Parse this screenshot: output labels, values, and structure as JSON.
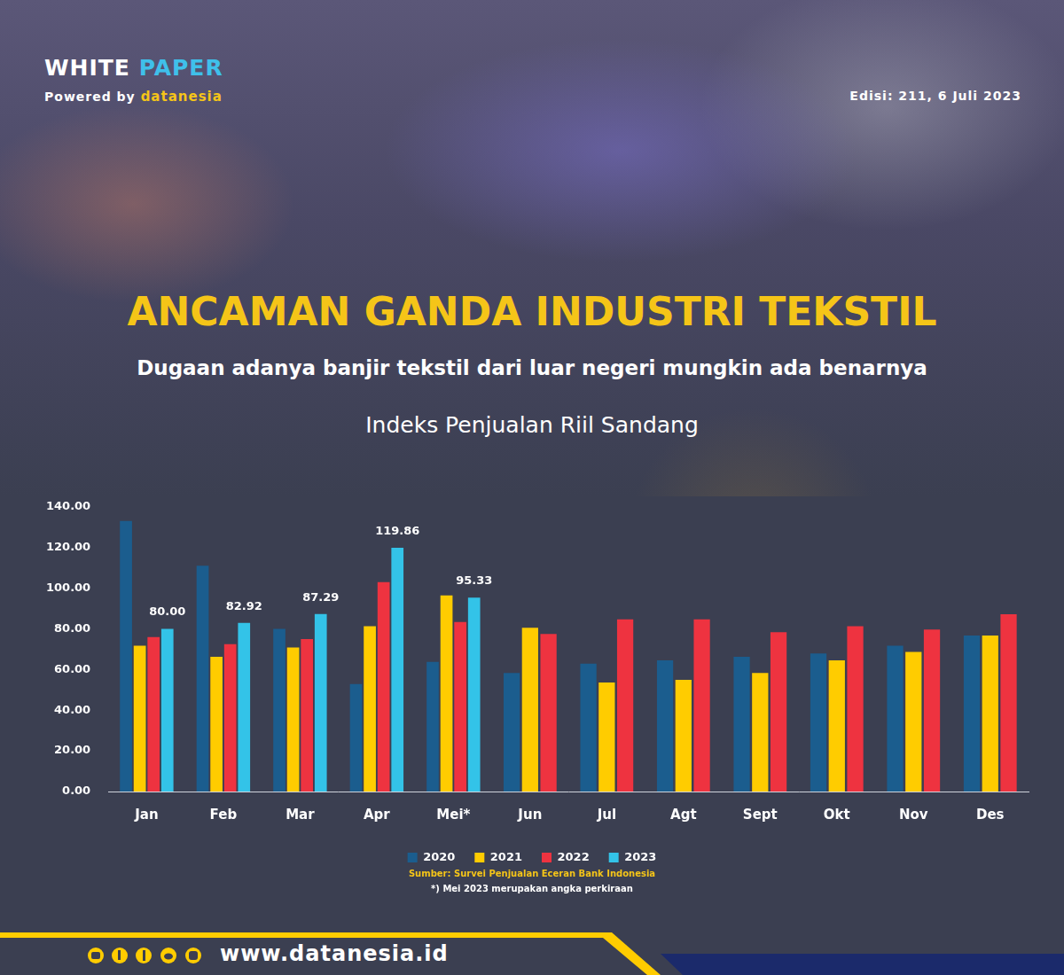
{
  "header": {
    "brand": [
      "WHITE",
      "PAPER"
    ],
    "powered_by": "Powered by",
    "logo": "datanesia",
    "edition": "Edisi: 211, 6 Juli 2023"
  },
  "headline": "ANCAMAN GANDA INDUSTRI TEKSTIL",
  "subheadline": "Dugaan adanya banjir tekstil dari luar negeri mungkin ada benarnya",
  "chart_data": {
    "type": "bar",
    "title": "Indeks Penjualan Riil Sandang",
    "categories": [
      "Jan",
      "Feb",
      "Mar",
      "Apr",
      "Mei*",
      "Jun",
      "Jul",
      "Agt",
      "Sept",
      "Okt",
      "Nov",
      "Des"
    ],
    "series": [
      {
        "name": "2020",
        "color": "#1b5d8e",
        "values": [
          133,
          111,
          80,
          52.8,
          63.7,
          58.3,
          62.9,
          64.5,
          66.2,
          67.9,
          71.7,
          76.7
        ]
      },
      {
        "name": "2021",
        "color": "#ffcc00",
        "values": [
          71.7,
          66.2,
          70.8,
          81.3,
          96.4,
          80.5,
          53.6,
          54.9,
          58.3,
          64.5,
          68.7,
          76.7
        ]
      },
      {
        "name": "2022",
        "color": "#ee3340",
        "values": [
          75.9,
          72.5,
          75,
          103,
          83.4,
          77.5,
          84.7,
          84.7,
          78.4,
          81.3,
          79.6,
          87.2
        ]
      },
      {
        "name": "2023",
        "color": "#33c3e8",
        "values": [
          80,
          82.92,
          87.29,
          119.86,
          95.33,
          null,
          null,
          null,
          null,
          null,
          null,
          null
        ],
        "value_labels": [
          "80.00",
          "82.92",
          "87.29",
          "119.86",
          "95.33",
          null,
          null,
          null,
          null,
          null,
          null,
          null
        ],
        "data_labels": true
      }
    ],
    "ylim": [
      0,
      140
    ],
    "yticks": [
      {
        "value": 0,
        "label": "0.00"
      },
      {
        "value": 20,
        "label": "20.00"
      },
      {
        "value": 40,
        "label": "40.00"
      },
      {
        "value": 60,
        "label": "60.00"
      },
      {
        "value": 80,
        "label": "80.00"
      },
      {
        "value": 100,
        "label": "100.00"
      },
      {
        "value": 120,
        "label": "120.00"
      },
      {
        "value": 140,
        "label": "140.00"
      }
    ],
    "grid": false,
    "legend": "bottom",
    "source": "Sumber: Survei Penjualan Eceran Bank Indonesia",
    "note": "*) Mei 2023 merupakan angka perkiraan"
  },
  "footer": {
    "url": "www.datanesia.id"
  }
}
